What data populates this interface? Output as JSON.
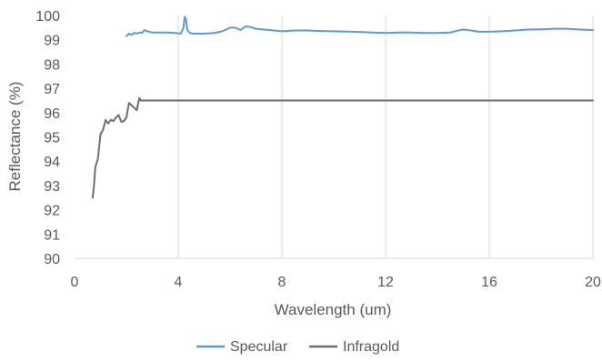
{
  "chart_data": {
    "type": "line",
    "title": "",
    "xlabel": "Wavelength (um)",
    "ylabel": "Reflectance (%)",
    "xlim": [
      0,
      20
    ],
    "ylim": [
      90,
      100
    ],
    "x_ticks": [
      0,
      4,
      8,
      12,
      16,
      20
    ],
    "x_tick_labels": [
      "0",
      "4",
      "8",
      "12",
      "16",
      "20"
    ],
    "y_ticks": [
      90,
      91,
      92,
      93,
      94,
      95,
      96,
      97,
      98,
      99,
      100
    ],
    "y_tick_labels": [
      "90",
      "91",
      "92",
      "93",
      "94",
      "95",
      "96",
      "97",
      "98",
      "99",
      "100"
    ],
    "grid": "vertical",
    "legend_position": "bottom",
    "series": [
      {
        "name": "Specular",
        "color": "#5B9BD5",
        "points": [
          [
            2.0,
            99.15
          ],
          [
            2.1,
            99.25
          ],
          [
            2.2,
            99.2
          ],
          [
            2.3,
            99.28
          ],
          [
            2.4,
            99.25
          ],
          [
            2.5,
            99.3
          ],
          [
            2.6,
            99.28
          ],
          [
            2.7,
            99.4
          ],
          [
            2.8,
            99.35
          ],
          [
            2.9,
            99.32
          ],
          [
            3.0,
            99.3
          ],
          [
            3.3,
            99.3
          ],
          [
            3.6,
            99.3
          ],
          [
            3.9,
            99.28
          ],
          [
            4.1,
            99.25
          ],
          [
            4.2,
            99.5
          ],
          [
            4.25,
            99.95
          ],
          [
            4.3,
            99.85
          ],
          [
            4.35,
            99.4
          ],
          [
            4.45,
            99.28
          ],
          [
            4.6,
            99.25
          ],
          [
            5.0,
            99.25
          ],
          [
            5.4,
            99.28
          ],
          [
            5.7,
            99.35
          ],
          [
            6.0,
            99.5
          ],
          [
            6.2,
            99.5
          ],
          [
            6.4,
            99.4
          ],
          [
            6.6,
            99.55
          ],
          [
            6.8,
            99.52
          ],
          [
            7.0,
            99.45
          ],
          [
            7.5,
            99.4
          ],
          [
            8.0,
            99.35
          ],
          [
            8.5,
            99.38
          ],
          [
            9.0,
            99.38
          ],
          [
            9.5,
            99.36
          ],
          [
            10.0,
            99.35
          ],
          [
            11.0,
            99.32
          ],
          [
            11.5,
            99.3
          ],
          [
            12.0,
            99.28
          ],
          [
            12.5,
            99.3
          ],
          [
            13.0,
            99.3
          ],
          [
            13.5,
            99.28
          ],
          [
            14.0,
            99.28
          ],
          [
            14.5,
            99.3
          ],
          [
            14.8,
            99.38
          ],
          [
            15.0,
            99.42
          ],
          [
            15.3,
            99.38
          ],
          [
            15.6,
            99.33
          ],
          [
            16.0,
            99.33
          ],
          [
            16.5,
            99.35
          ],
          [
            17.0,
            99.38
          ],
          [
            17.5,
            99.42
          ],
          [
            18.0,
            99.43
          ],
          [
            18.5,
            99.45
          ],
          [
            19.0,
            99.45
          ],
          [
            19.5,
            99.42
          ],
          [
            20.0,
            99.4
          ]
        ]
      },
      {
        "name": "Infragold",
        "color": "#6E6E6E",
        "points": [
          [
            0.7,
            92.5
          ],
          [
            0.75,
            93.0
          ],
          [
            0.8,
            93.75
          ],
          [
            0.9,
            94.1
          ],
          [
            1.0,
            95.1
          ],
          [
            1.1,
            95.3
          ],
          [
            1.2,
            95.7
          ],
          [
            1.3,
            95.55
          ],
          [
            1.4,
            95.7
          ],
          [
            1.5,
            95.65
          ],
          [
            1.6,
            95.8
          ],
          [
            1.7,
            95.9
          ],
          [
            1.8,
            95.62
          ],
          [
            1.9,
            95.65
          ],
          [
            2.0,
            95.8
          ],
          [
            2.1,
            96.4
          ],
          [
            2.2,
            96.3
          ],
          [
            2.3,
            96.2
          ],
          [
            2.4,
            96.1
          ],
          [
            2.5,
            96.6
          ],
          [
            2.55,
            96.5
          ],
          [
            3.0,
            96.5
          ],
          [
            5.0,
            96.5
          ],
          [
            10.0,
            96.5
          ],
          [
            15.0,
            96.5
          ],
          [
            20.0,
            96.5
          ]
        ]
      }
    ]
  }
}
